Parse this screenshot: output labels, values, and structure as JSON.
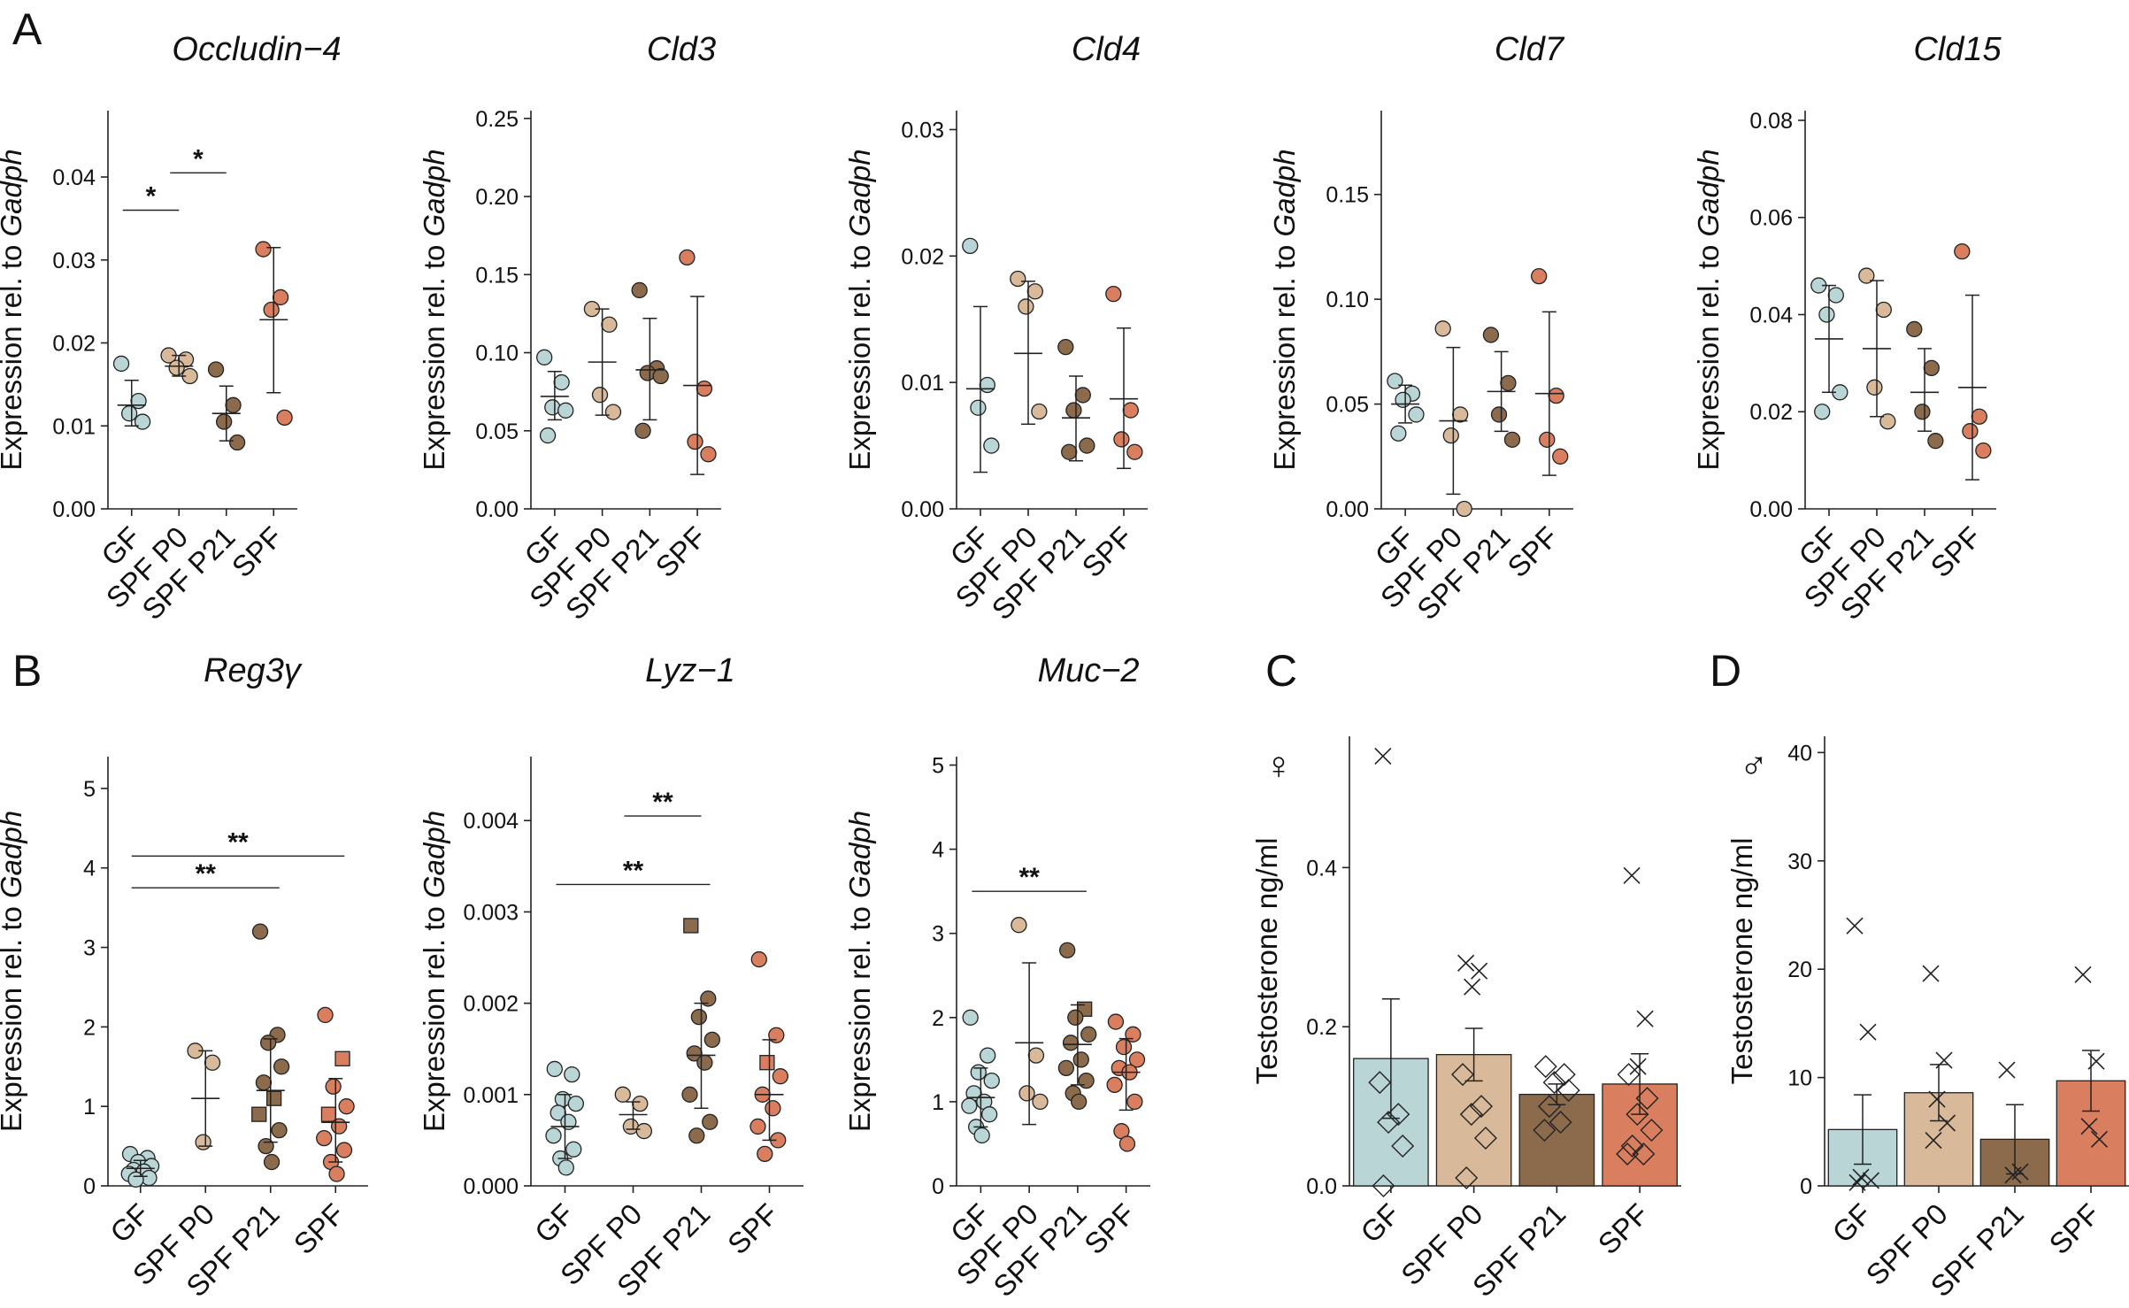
{
  "panel_labels": [
    "A",
    "B",
    "C",
    "D"
  ],
  "group_colors": {
    "GF": "#b9d5d6",
    "SPF P0": "#d8b99a",
    "SPF P21": "#8b6b4c",
    "SPF": "#d97f5f"
  },
  "chart_data": [
    {
      "type": "scatter",
      "panel": "A",
      "title": "Occludin−4",
      "title_italic": true,
      "ylabel": "Expression rel. to ",
      "ylabel_gene": "Gadph",
      "categories": [
        "GF",
        "SPF P0",
        "SPF P21",
        "SPF"
      ],
      "ylim": [
        0,
        0.048
      ],
      "yticks": [
        0.0,
        0.01,
        0.02,
        0.03,
        0.04
      ],
      "ytick_labels": [
        "0.00",
        "0.01",
        "0.02",
        "0.03",
        "0.04"
      ],
      "series": [
        {
          "name": "GF",
          "points": [
            0.0175,
            0.013,
            0.0115,
            0.0105
          ],
          "mean": 0.0125,
          "sd_low": 0.01,
          "sd_high": 0.0155
        },
        {
          "name": "SPF P0",
          "points": [
            0.0185,
            0.018,
            0.017,
            0.016
          ],
          "mean": 0.0172,
          "sd_low": 0.016,
          "sd_high": 0.0185
        },
        {
          "name": "SPF P21",
          "points": [
            0.0168,
            0.0125,
            0.0105,
            0.008
          ],
          "mean": 0.0115,
          "sd_low": 0.0082,
          "sd_high": 0.0148
        },
        {
          "name": "SPF",
          "points": [
            0.0313,
            0.0255,
            0.024,
            0.011
          ],
          "mean": 0.0228,
          "sd_low": 0.014,
          "sd_high": 0.0315
        }
      ],
      "significance": [
        {
          "from": 0,
          "to": 1,
          "y": 0.036,
          "label": "*"
        },
        {
          "from": 1,
          "to": 2,
          "y": 0.0405,
          "label": "*"
        }
      ]
    },
    {
      "type": "scatter",
      "panel": "A",
      "title": "Cld3",
      "title_italic": true,
      "ylabel": "Expression rel. to ",
      "ylabel_gene": "Gadph",
      "categories": [
        "GF",
        "SPF P0",
        "SPF P21",
        "SPF"
      ],
      "ylim": [
        0,
        0.255
      ],
      "yticks": [
        0,
        0.05,
        0.1,
        0.15,
        0.2,
        0.25
      ],
      "ytick_labels": [
        "0.00",
        "0.05",
        "0.10",
        "0.15",
        "0.20",
        "0.25"
      ],
      "series": [
        {
          "name": "GF",
          "points": [
            0.097,
            0.081,
            0.065,
            0.063,
            0.047
          ],
          "mean": 0.072,
          "sd_low": 0.057,
          "sd_high": 0.088
        },
        {
          "name": "SPF P0",
          "points": [
            0.128,
            0.118,
            0.073,
            0.062
          ],
          "mean": 0.094,
          "sd_low": 0.06,
          "sd_high": 0.128
        },
        {
          "name": "SPF P21",
          "points": [
            0.14,
            0.09,
            0.087,
            0.085,
            0.05
          ],
          "mean": 0.089,
          "sd_low": 0.057,
          "sd_high": 0.122
        },
        {
          "name": "SPF",
          "points": [
            0.161,
            0.077,
            0.043,
            0.035
          ],
          "mean": 0.079,
          "sd_low": 0.022,
          "sd_high": 0.136
        }
      ],
      "significance": []
    },
    {
      "type": "scatter",
      "panel": "A",
      "title": "Cld4",
      "title_italic": true,
      "ylabel": "Expression rel. to ",
      "ylabel_gene": "Gadph",
      "categories": [
        "GF",
        "SPF P0",
        "SPF P21",
        "SPF"
      ],
      "ylim": [
        0,
        0.0315
      ],
      "yticks": [
        0,
        0.01,
        0.02,
        0.03
      ],
      "ytick_labels": [
        "0.00",
        "0.01",
        "0.02",
        "0.03"
      ],
      "series": [
        {
          "name": "GF",
          "points": [
            0.0208,
            0.0098,
            0.008,
            0.005
          ],
          "mean": 0.0095,
          "sd_low": 0.0029,
          "sd_high": 0.016
        },
        {
          "name": "SPF P0",
          "points": [
            0.0182,
            0.0172,
            0.016,
            0.0077
          ],
          "mean": 0.0123,
          "sd_low": 0.0067,
          "sd_high": 0.018
        },
        {
          "name": "SPF P21",
          "points": [
            0.0128,
            0.009,
            0.0078,
            0.005,
            0.0045
          ],
          "mean": 0.0072,
          "sd_low": 0.0038,
          "sd_high": 0.0105
        },
        {
          "name": "SPF",
          "points": [
            0.017,
            0.0078,
            0.0055,
            0.0045
          ],
          "mean": 0.0087,
          "sd_low": 0.0032,
          "sd_high": 0.0143
        }
      ],
      "significance": []
    },
    {
      "type": "scatter",
      "panel": "A",
      "title": "Cld7",
      "title_italic": true,
      "ylabel": "Expression rel. to ",
      "ylabel_gene": "Gadph",
      "categories": [
        "GF",
        "SPF P0",
        "SPF P21",
        "SPF"
      ],
      "ylim": [
        0,
        0.19
      ],
      "yticks": [
        0,
        0.05,
        0.1,
        0.15
      ],
      "ytick_labels": [
        "0.00",
        "0.05",
        "0.10",
        "0.15"
      ],
      "series": [
        {
          "name": "GF",
          "points": [
            0.061,
            0.055,
            0.052,
            0.045,
            0.036
          ],
          "mean": 0.05,
          "sd_low": 0.041,
          "sd_high": 0.059
        },
        {
          "name": "SPF P0",
          "points": [
            0.086,
            0.045,
            0.035,
            0.0
          ],
          "mean": 0.042,
          "sd_low": 0.007,
          "sd_high": 0.077
        },
        {
          "name": "SPF P21",
          "points": [
            0.083,
            0.06,
            0.045,
            0.033
          ],
          "mean": 0.056,
          "sd_low": 0.037,
          "sd_high": 0.075
        },
        {
          "name": "SPF",
          "points": [
            0.111,
            0.054,
            0.033,
            0.025
          ],
          "mean": 0.055,
          "sd_low": 0.016,
          "sd_high": 0.094
        }
      ],
      "significance": []
    },
    {
      "type": "scatter",
      "panel": "A",
      "title": "Cld15",
      "title_italic": true,
      "ylabel": "Expression rel. to ",
      "ylabel_gene": "Gadph",
      "categories": [
        "GF",
        "SPF P0",
        "SPF P21",
        "SPF"
      ],
      "ylim": [
        0,
        0.082
      ],
      "yticks": [
        0,
        0.02,
        0.04,
        0.06,
        0.08
      ],
      "ytick_labels": [
        "0.00",
        "0.02",
        "0.04",
        "0.06",
        "0.08"
      ],
      "series": [
        {
          "name": "GF",
          "points": [
            0.046,
            0.044,
            0.04,
            0.024,
            0.02
          ],
          "mean": 0.035,
          "sd_low": 0.024,
          "sd_high": 0.046
        },
        {
          "name": "SPF P0",
          "points": [
            0.048,
            0.041,
            0.025,
            0.018
          ],
          "mean": 0.033,
          "sd_low": 0.019,
          "sd_high": 0.047
        },
        {
          "name": "SPF P21",
          "points": [
            0.037,
            0.029,
            0.02,
            0.014
          ],
          "mean": 0.024,
          "sd_low": 0.016,
          "sd_high": 0.033
        },
        {
          "name": "SPF",
          "points": [
            0.053,
            0.019,
            0.016,
            0.012
          ],
          "mean": 0.025,
          "sd_low": 0.006,
          "sd_high": 0.044
        }
      ],
      "significance": []
    },
    {
      "type": "scatter",
      "panel": "B",
      "title": "Reg3γ",
      "title_italic": true,
      "ylabel": "Expression rel. to ",
      "ylabel_gene": "Gadph",
      "categories": [
        "GF",
        "SPF P0",
        "SPF P21",
        "SPF"
      ],
      "ylim": [
        0,
        5.4
      ],
      "yticks": [
        0,
        1,
        2,
        3,
        4,
        5
      ],
      "ytick_labels": [
        "0",
        "1",
        "2",
        "3",
        "4",
        "5"
      ],
      "series": [
        {
          "name": "GF",
          "points": [
            0.4,
            0.35,
            0.3,
            0.25,
            0.2,
            0.18,
            0.15,
            0.1,
            0.08
          ],
          "mean": 0.22,
          "sd_low": 0.12,
          "sd_high": 0.32
        },
        {
          "name": "SPF P0",
          "points": [
            1.7,
            1.55,
            0.55
          ],
          "mean": 1.1,
          "sd_low": 0.5,
          "sd_high": 1.7
        },
        {
          "name": "SPF P21",
          "points": [
            3.2,
            1.9,
            1.8,
            1.5,
            1.3,
            1.1,
            0.9,
            0.7,
            0.5,
            0.3
          ],
          "mean": 1.2,
          "sd_low": 0.55,
          "sd_high": 1.85
        },
        {
          "name": "SPF",
          "points": [
            2.15,
            1.6,
            1.25,
            1.0,
            0.9,
            0.75,
            0.6,
            0.45,
            0.3,
            0.15
          ],
          "mean": 0.8,
          "sd_low": 0.3,
          "sd_high": 1.35
        }
      ],
      "square_markers": {
        "SPF P21": [
          5,
          6
        ],
        "SPF": [
          1,
          4
        ]
      },
      "significance": [
        {
          "from": 0,
          "to": 2,
          "y": 3.75,
          "label": "**"
        },
        {
          "from": 0,
          "to": 3,
          "y": 4.15,
          "label": "**"
        }
      ]
    },
    {
      "type": "scatter",
      "panel": "B",
      "title": "Lyz−1",
      "title_italic": true,
      "ylabel": "Expression rel. to ",
      "ylabel_gene": "Gadph",
      "categories": [
        "GF",
        "SPF P0",
        "SPF P21",
        "SPF"
      ],
      "ylim": [
        0,
        0.0047
      ],
      "yticks": [
        0,
        0.001,
        0.002,
        0.003,
        0.004
      ],
      "ytick_labels": [
        "0.000",
        "0.001",
        "0.002",
        "0.003",
        "0.004"
      ],
      "series": [
        {
          "name": "GF",
          "points": [
            0.00128,
            0.00122,
            0.00095,
            0.0009,
            0.0008,
            0.0007,
            0.00055,
            0.0004,
            0.0003,
            0.0002
          ],
          "mean": 0.00065,
          "sd_low": 0.0003,
          "sd_high": 0.001
        },
        {
          "name": "SPF P0",
          "points": [
            0.001,
            0.0009,
            0.00065,
            0.0006
          ],
          "mean": 0.00078,
          "sd_low": 0.00062,
          "sd_high": 0.00092
        },
        {
          "name": "SPF P21",
          "points": [
            0.00285,
            0.00205,
            0.00185,
            0.0016,
            0.00145,
            0.00135,
            0.001,
            0.0007,
            0.00055
          ],
          "mean": 0.00143,
          "sd_low": 0.00085,
          "sd_high": 0.002
        },
        {
          "name": "SPF",
          "points": [
            0.00248,
            0.00165,
            0.00135,
            0.0012,
            0.001,
            0.00085,
            0.00065,
            0.0005,
            0.00035
          ],
          "mean": 0.001,
          "sd_low": 0.0005,
          "sd_high": 0.0016
        },
        {
          "name": "_",
          "points": []
        }
      ],
      "square_markers": {
        "SPF P21": [
          0
        ],
        "SPF": [
          2
        ]
      },
      "significance": [
        {
          "from": 0,
          "to": 2,
          "y": 0.0033,
          "label": "**"
        },
        {
          "from": 1,
          "to": 2,
          "y": 0.00405,
          "label": "**"
        }
      ]
    },
    {
      "type": "scatter",
      "panel": "B",
      "title": "Muc−2",
      "title_italic": true,
      "ylabel": "Expression rel. to ",
      "ylabel_gene": "Gadph",
      "categories": [
        "GF",
        "SPF P0",
        "SPF P21",
        "SPF"
      ],
      "ylim": [
        0,
        5.1
      ],
      "yticks": [
        0,
        1,
        2,
        3,
        4,
        5
      ],
      "ytick_labels": [
        "0",
        "1",
        "2",
        "3",
        "4",
        "5"
      ],
      "series": [
        {
          "name": "GF",
          "points": [
            2.0,
            1.55,
            1.35,
            1.25,
            1.1,
            1.0,
            0.95,
            0.85,
            0.7,
            0.6
          ],
          "mean": 1.05,
          "sd_low": 0.7,
          "sd_high": 1.4
        },
        {
          "name": "SPF P0",
          "points": [
            3.1,
            1.55,
            1.1,
            1.0
          ],
          "mean": 1.7,
          "sd_low": 0.73,
          "sd_high": 2.65
        },
        {
          "name": "SPF P21",
          "points": [
            2.8,
            2.1,
            2.0,
            1.8,
            1.7,
            1.5,
            1.4,
            1.25,
            1.1,
            1.0
          ],
          "mean": 1.68,
          "sd_low": 1.2,
          "sd_high": 2.15
        },
        {
          "name": "SPF",
          "points": [
            1.95,
            1.8,
            1.65,
            1.5,
            1.4,
            1.35,
            1.2,
            1.0,
            0.65,
            0.5
          ],
          "mean": 1.35,
          "sd_low": 0.9,
          "sd_high": 1.75
        }
      ],
      "square_markers": {
        "SPF P21": [
          1
        ]
      },
      "significance": [
        {
          "from": 0,
          "to": 2,
          "y": 3.5,
          "label": "**"
        }
      ]
    },
    {
      "type": "bar",
      "panel": "C",
      "sex_symbol": "♀",
      "title": "",
      "ylabel": "Testosterone ng/ml",
      "categories": [
        "GF",
        "SPF P0",
        "SPF P21",
        "SPF"
      ],
      "ylim": [
        0,
        0.565
      ],
      "yticks": [
        0,
        0.2,
        0.4
      ],
      "ytick_labels": [
        "0.0",
        "0.2",
        "0.4"
      ],
      "values": [
        0.16,
        0.165,
        0.115,
        0.128
      ],
      "error": [
        0.075,
        0.033,
        0.013,
        0.038
      ],
      "points_x": [
        [
          0.54
        ],
        [
          0.28,
          0.27,
          0.25
        ],
        [],
        [
          0.39,
          0.21,
          0.15
        ]
      ],
      "points_diamond": [
        [
          0.13,
          0.09,
          0.08,
          0.05,
          0.0
        ],
        [
          0.14,
          0.1,
          0.09,
          0.06,
          0.01
        ],
        [
          0.15,
          0.14,
          0.13,
          0.12,
          0.1,
          0.08,
          0.07
        ],
        [
          0.14,
          0.11,
          0.09,
          0.07,
          0.05,
          0.04,
          0.04
        ]
      ]
    },
    {
      "type": "bar",
      "panel": "D",
      "sex_symbol": "♂",
      "title": "",
      "ylabel": "Testosterone ng/ml",
      "categories": [
        "GF",
        "SPF P0",
        "SPF P21",
        "SPF"
      ],
      "ylim": [
        0,
        41.5
      ],
      "yticks": [
        0,
        10,
        20,
        30,
        40
      ],
      "ytick_labels": [
        "0",
        "10",
        "20",
        "30",
        "40"
      ],
      "values": [
        5.2,
        8.6,
        4.3,
        9.7
      ],
      "error": [
        3.2,
        2.6,
        3.2,
        2.8
      ],
      "points_x": [
        [
          24.0,
          14.2,
          0.8,
          0.5,
          0.3
        ],
        [
          19.6,
          11.6,
          8.0,
          5.8,
          4.2
        ],
        [
          10.7,
          1.3,
          1.0
        ],
        [
          19.5,
          11.5,
          5.5,
          4.3
        ]
      ],
      "points_diamond": [
        [],
        [],
        [],
        []
      ]
    }
  ]
}
